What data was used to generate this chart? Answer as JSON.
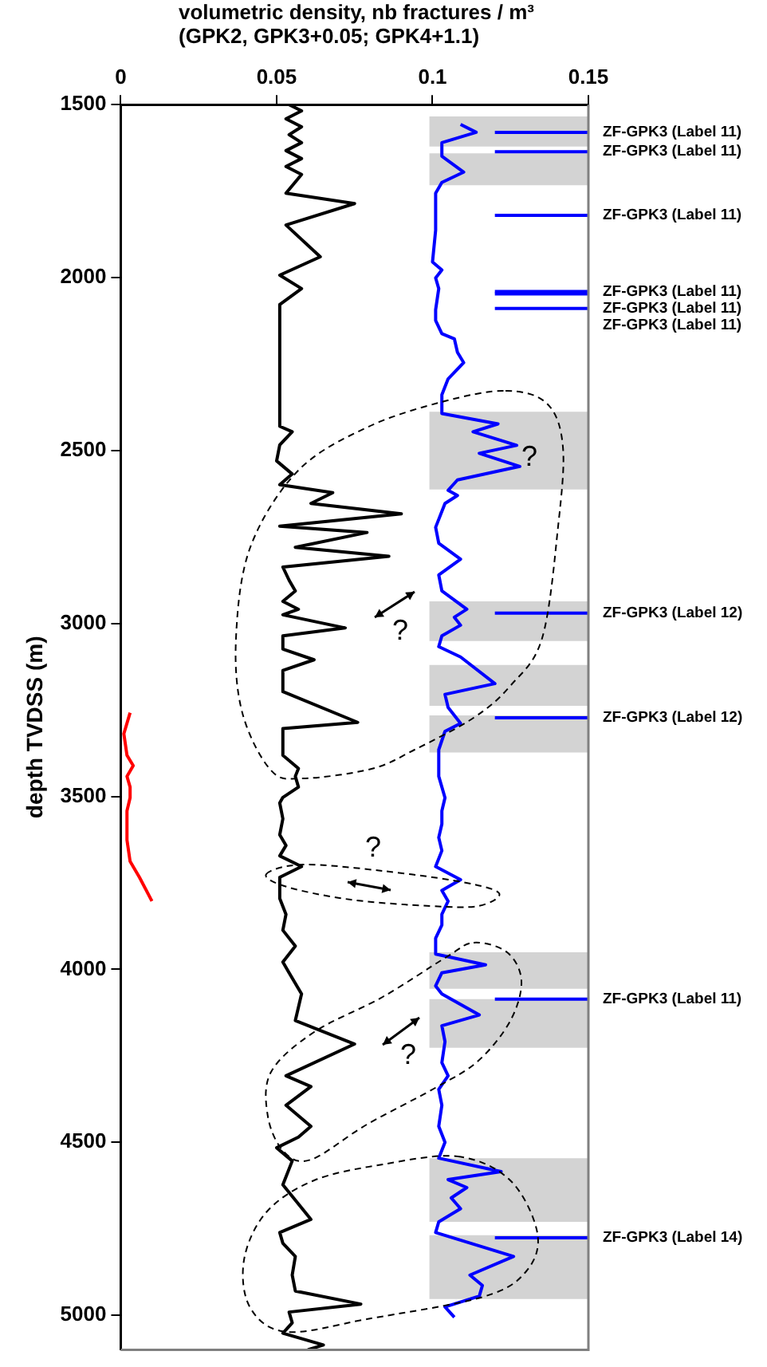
{
  "chart_data": {
    "type": "line",
    "title": "volumetric density, nb fractures / m³\n(GPK2, GPK3+0.05; GPK4+1.1)",
    "ylabel": "depth TVDSS (m)",
    "xlim": [
      0,
      0.15
    ],
    "xticks": [
      0,
      0.05,
      0.1,
      0.15
    ],
    "ylim": [
      5100,
      1500
    ],
    "yticks": [
      1500,
      2000,
      2500,
      3000,
      3500,
      4000,
      4500,
      5000
    ],
    "series": [
      {
        "color": "#000000",
        "x": [
          0.054,
          0.058,
          0.053,
          0.058,
          0.054,
          0.058,
          0.053,
          0.058,
          0.053,
          0.058,
          0.053,
          0.075,
          0.053,
          0.064,
          0.051,
          0.058,
          0.051,
          0.051,
          0.055,
          0.051,
          0.05,
          0.055,
          0.051,
          0.068,
          0.061,
          0.09,
          0.051,
          0.079,
          0.056,
          0.086,
          0.052,
          0.054,
          0.056,
          0.052,
          0.057,
          0.052,
          0.072,
          0.052,
          0.052,
          0.062,
          0.052,
          0.052,
          0.076,
          0.052,
          0.052,
          0.057,
          0.056,
          0.057,
          0.052,
          0.051,
          0.052,
          0.051,
          0.053,
          0.051,
          0.058,
          0.051,
          0.051,
          0.053,
          0.052,
          0.056,
          0.052,
          0.054,
          0.058,
          0.056,
          0.075,
          0.053,
          0.061,
          0.053,
          0.061,
          0.057,
          0.05,
          0.055,
          0.052,
          0.061,
          0.051,
          0.052,
          0.056,
          0.055,
          0.056,
          0.077,
          0.054,
          0.055,
          0.052,
          0.065,
          0.06
        ],
        "values": [
          1500,
          1518,
          1541,
          1564,
          1587,
          1610,
          1633,
          1656,
          1679,
          1702,
          1756,
          1786,
          1848,
          1940,
          1993,
          2032,
          2078,
          2430,
          2446,
          2484,
          2530,
          2568,
          2599,
          2622,
          2653,
          2683,
          2719,
          2737,
          2780,
          2806,
          2837,
          2875,
          2906,
          2936,
          2959,
          2975,
          3013,
          3036,
          3074,
          3105,
          3136,
          3197,
          3286,
          3304,
          3381,
          3419,
          3442,
          3473,
          3503,
          3519,
          3565,
          3611,
          3642,
          3672,
          3703,
          3734,
          3795,
          3841,
          3887,
          3933,
          3979,
          4010,
          4071,
          4148,
          4216,
          4308,
          4339,
          4393,
          4454,
          4485,
          4516,
          4554,
          4623,
          4723,
          4761,
          4792,
          4830,
          4884,
          4930,
          4968,
          4991,
          5022,
          5052,
          5086,
          5100
        ]
      },
      {
        "color": "#0000ff",
        "x": [
          0.109,
          0.114,
          0.103,
          0.103,
          0.11,
          0.103,
          0.101,
          0.101,
          0.1,
          0.103,
          0.101,
          0.102,
          0.101,
          0.101,
          0.103,
          0.107,
          0.108,
          0.11,
          0.105,
          0.103,
          0.103,
          0.121,
          0.113,
          0.127,
          0.115,
          0.128,
          0.108,
          0.105,
          0.108,
          0.104,
          0.101,
          0.102,
          0.109,
          0.102,
          0.103,
          0.111,
          0.107,
          0.109,
          0.103,
          0.102,
          0.109,
          0.12,
          0.104,
          0.105,
          0.109,
          0.104,
          0.102,
          0.102,
          0.104,
          0.103,
          0.103,
          0.102,
          0.103,
          0.101,
          0.109,
          0.103,
          0.105,
          0.103,
          0.103,
          0.101,
          0.101,
          0.117,
          0.103,
          0.101,
          0.103,
          0.115,
          0.103,
          0.104,
          0.103,
          0.105,
          0.102,
          0.103,
          0.102,
          0.104,
          0.102,
          0.122,
          0.105,
          0.111,
          0.106,
          0.109,
          0.102,
          0.101,
          0.126,
          0.112,
          0.116,
          0.115,
          0.104,
          0.107
        ],
        "values": [
          1557,
          1580,
          1610,
          1649,
          1695,
          1725,
          1756,
          1863,
          1955,
          1978,
          2001,
          2032,
          2093,
          2124,
          2162,
          2177,
          2216,
          2246,
          2293,
          2339,
          2393,
          2423,
          2446,
          2485,
          2508,
          2546,
          2585,
          2615,
          2630,
          2653,
          2722,
          2768,
          2814,
          2860,
          2906,
          2959,
          2982,
          3005,
          3036,
          3067,
          3097,
          3174,
          3205,
          3243,
          3289,
          3312,
          3365,
          3442,
          3504,
          3542,
          3580,
          3619,
          3657,
          3703,
          3741,
          3772,
          3803,
          3841,
          3872,
          3910,
          3956,
          3987,
          4010,
          4048,
          4071,
          4132,
          4163,
          4209,
          4270,
          4308,
          4347,
          4393,
          4454,
          4500,
          4546,
          4585,
          4608,
          4631,
          4661,
          4692,
          4730,
          4761,
          4830,
          4884,
          4914,
          4945,
          4976,
          5006
        ]
      },
      {
        "color": "#ff0000",
        "x": [
          0.003,
          0.001,
          0.002,
          0.004,
          0.002,
          0.003,
          0.003,
          0.002,
          0.002,
          0.003,
          0.006,
          0.01
        ],
        "values": [
          3258,
          3319,
          3381,
          3411,
          3442,
          3473,
          3504,
          3542,
          3626,
          3688,
          3734,
          3803
        ]
      }
    ],
    "bands": [
      {
        "axis": "y",
        "from": 1534,
        "to": 1621,
        "color": "#d3d3d3"
      },
      {
        "axis": "y",
        "from": 1641,
        "to": 1733,
        "color": "#d3d3d3"
      },
      {
        "axis": "y",
        "from": 2388,
        "to": 2613,
        "color": "#d3d3d3"
      },
      {
        "axis": "y",
        "from": 2936,
        "to": 3051,
        "color": "#d3d3d3"
      },
      {
        "axis": "y",
        "from": 3120,
        "to": 3238,
        "color": "#d3d3d3"
      },
      {
        "axis": "y",
        "from": 3266,
        "to": 3373,
        "color": "#d3d3d3"
      },
      {
        "axis": "y",
        "from": 3951,
        "to": 4056,
        "color": "#d3d3d3"
      },
      {
        "axis": "y",
        "from": 4086,
        "to": 4227,
        "color": "#d3d3d3"
      },
      {
        "axis": "y",
        "from": 4546,
        "to": 4730,
        "color": "#d3d3d3"
      },
      {
        "axis": "y",
        "from": 4769,
        "to": 4953,
        "color": "#d3d3d3"
      }
    ],
    "ref_lines": [
      {
        "axis": "y",
        "value": 1580,
        "label": "ZF-GPK3 (Label 11)",
        "color": "#0000ff"
      },
      {
        "axis": "y",
        "value": 1636,
        "label": "ZF-GPK3 (Label 11)",
        "color": "#0000ff"
      },
      {
        "axis": "y",
        "value": 1820,
        "label": "ZF-GPK3 (Label 11)",
        "color": "#0000ff"
      },
      {
        "axis": "y",
        "value": 2040,
        "label": "ZF-GPK3 (Label 11)",
        "color": "#0000ff"
      },
      {
        "axis": "y",
        "value": 2047,
        "label": "ZF-GPK3 (Label 11)",
        "color": "#0000ff"
      },
      {
        "axis": "y",
        "value": 2089,
        "label": "ZF-GPK3 (Label 11)",
        "color": "#0000ff"
      },
      {
        "axis": "y",
        "value": 2970,
        "label": "ZF-GPK3 (Label 12)",
        "color": "#0000ff"
      },
      {
        "axis": "y",
        "value": 3273,
        "label": "ZF-GPK3 (Label 12)",
        "color": "#0000ff"
      },
      {
        "axis": "y",
        "value": 4086,
        "label": "ZF-GPK3 (Label 11)",
        "color": "#0000ff"
      },
      {
        "axis": "y",
        "value": 4776,
        "label": "ZF-GPK3 (Label 14)",
        "color": "#0000ff"
      }
    ],
    "annotations": [
      "?",
      "?",
      "?",
      "?"
    ]
  }
}
